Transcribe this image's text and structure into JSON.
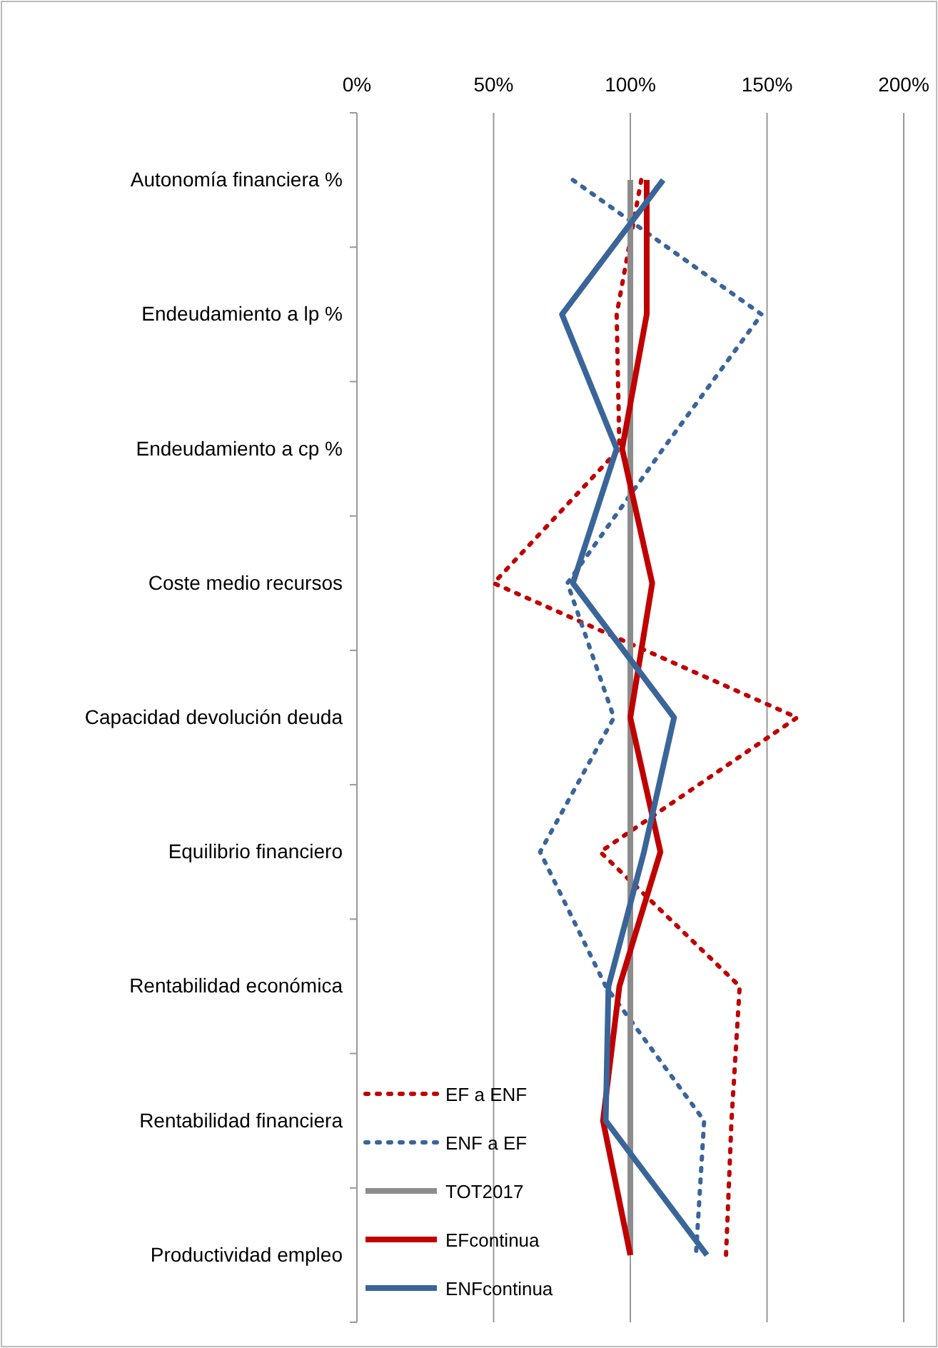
{
  "chart_data": {
    "type": "line",
    "orientation": "horizontal",
    "categories": [
      "Autonomía financiera %",
      "Endeudamiento a lp %",
      "Endeudamiento a cp %",
      "Coste medio recursos",
      "Capacidad devolución deuda",
      "Equilibrio financiero",
      "Rentabilidad económica",
      "Rentabilidad financiera",
      "Productividad empleo"
    ],
    "xlim": [
      0,
      2
    ],
    "xticks": [
      {
        "value": 0,
        "label": "0%"
      },
      {
        "value": 0.5,
        "label": "50%"
      },
      {
        "value": 1,
        "label": "100%"
      },
      {
        "value": 1.5,
        "label": "150%"
      },
      {
        "value": 2,
        "label": "200%"
      }
    ],
    "grid": "x",
    "legend": "bottom left",
    "marker": "none",
    "series": [
      {
        "name": "EF a ENF",
        "color": "#c00000",
        "line_style": "dotted",
        "values": [
          1.04,
          0.95,
          0.96,
          0.5,
          1.61,
          0.89,
          1.4,
          1.37,
          1.35
        ]
      },
      {
        "name": "ENF a EF",
        "color": "#3a6599",
        "line_style": "dotted",
        "values": [
          0.79,
          1.48,
          1.12,
          0.77,
          0.94,
          0.67,
          0.91,
          1.27,
          1.24
        ]
      },
      {
        "name": "TOT2017",
        "color": "#8c8c8c",
        "line_style": "solid",
        "values": [
          1,
          1,
          1,
          1,
          1,
          1,
          1,
          1,
          1
        ]
      },
      {
        "name": "EFcontinua",
        "color": "#c00000",
        "line_style": "solid",
        "values": [
          1.06,
          1.06,
          0.97,
          1.08,
          1.0,
          1.11,
          0.96,
          0.9,
          1.0
        ]
      },
      {
        "name": "ENFcontinua",
        "color": "#3a6599",
        "line_style": "solid",
        "values": [
          1.12,
          0.75,
          0.95,
          0.79,
          1.16,
          1.05,
          0.92,
          0.91,
          1.28
        ]
      }
    ]
  }
}
